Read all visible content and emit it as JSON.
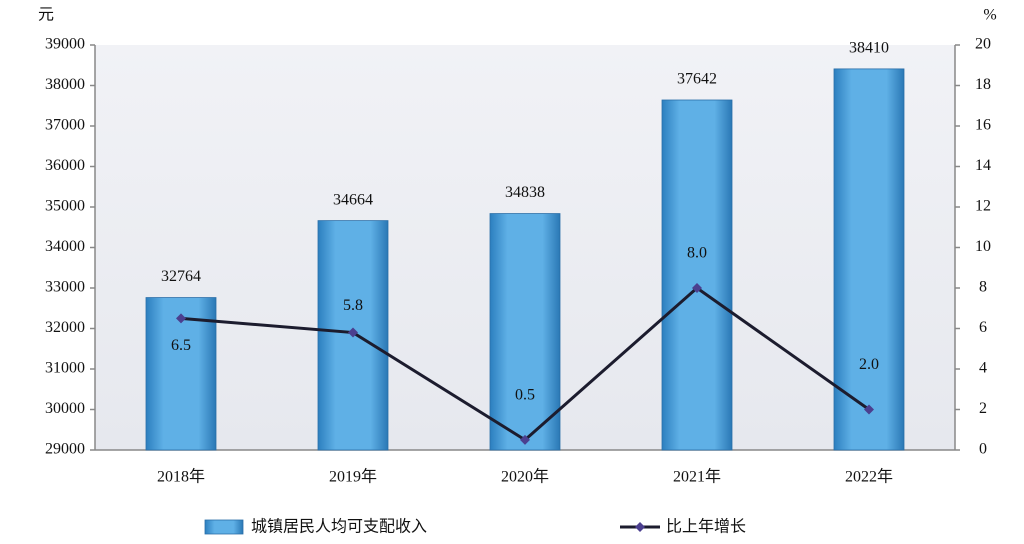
{
  "chart_data": {
    "type": "bar",
    "categories": [
      "2018年",
      "2019年",
      "2020年",
      "2021年",
      "2022年"
    ],
    "y_unit": "元",
    "y2_unit": "%",
    "series": [
      {
        "name": "城镇居民人均可支配收入",
        "type": "bar",
        "color": "#4a9fdc",
        "values": [
          32764,
          34664,
          34838,
          37642,
          38410
        ]
      },
      {
        "name": "比上年增长",
        "type": "line",
        "axis": "y2",
        "color": "#1c1c2e",
        "values": [
          6.5,
          5.8,
          0.5,
          8.0,
          2.0
        ],
        "value_labels": [
          "6.5",
          "5.8",
          "0.5",
          "8.0",
          "2.0"
        ]
      }
    ],
    "ylim": [
      29000,
      39000
    ],
    "yticks": [
      29000,
      30000,
      31000,
      32000,
      33000,
      34000,
      35000,
      36000,
      37000,
      38000,
      39000
    ],
    "y2lim": [
      0,
      20
    ],
    "y2ticks": [
      0,
      2,
      4,
      6,
      8,
      10,
      12,
      14,
      16,
      18,
      20
    ],
    "grid": false
  }
}
